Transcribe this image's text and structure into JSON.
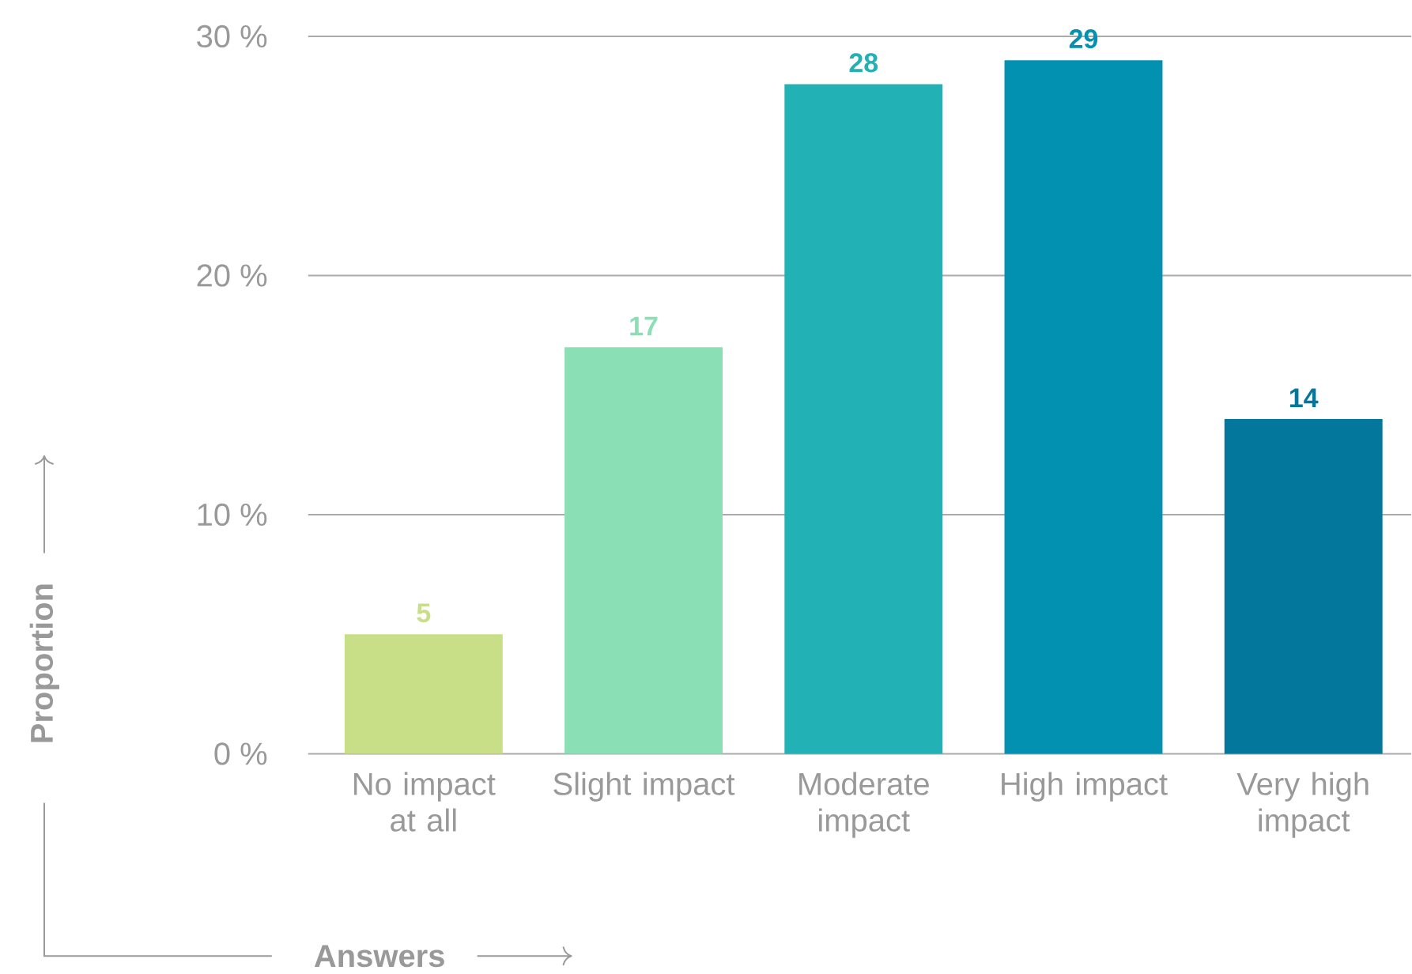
{
  "chart_data": {
    "type": "bar",
    "xlabel": "Answers",
    "ylabel": "Proportion",
    "categories": [
      "No impact at all",
      "Slight impact",
      "Moderate impact",
      "High impact",
      "Very high impact"
    ],
    "values": [
      5,
      17,
      28,
      29,
      14
    ],
    "colors": [
      "#c8df88",
      "#8adfb4",
      "#22b1b5",
      "#0291b1",
      "#03779c"
    ],
    "ylim": [
      0,
      30
    ],
    "yticks": [
      {
        "value": 0,
        "label": "0 %"
      },
      {
        "value": 10,
        "label": "10 %"
      },
      {
        "value": 20,
        "label": "20 %"
      },
      {
        "value": 30,
        "label": "30 %"
      }
    ],
    "grid": "y",
    "data_labels": true
  }
}
